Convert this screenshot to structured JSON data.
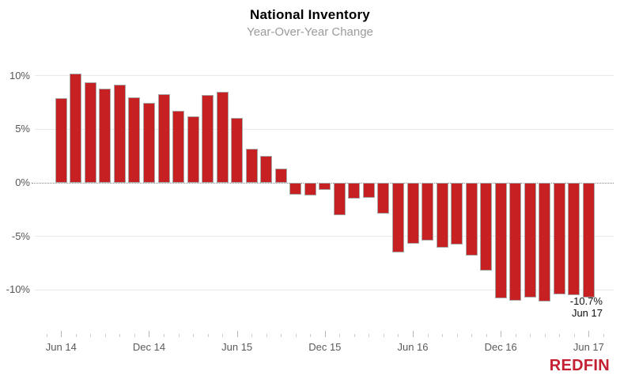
{
  "header": {
    "title": "National Inventory",
    "subtitle": "Year-Over-Year Change"
  },
  "branding": {
    "logo_text": "REDFIN",
    "logo_color": "#c32031"
  },
  "annotation": {
    "value_label": "-10.7%",
    "date_label": "Jun 17"
  },
  "chart_data": {
    "type": "bar",
    "title": "National Inventory",
    "subtitle": "Year-Over-Year Change",
    "unit": "%",
    "categories": [
      "Jun 14",
      "Jul 14",
      "Aug 14",
      "Sep 14",
      "Oct 14",
      "Nov 14",
      "Dec 14",
      "Jan 15",
      "Feb 15",
      "Mar 15",
      "Apr 15",
      "May 15",
      "Jun 15",
      "Jul 15",
      "Aug 15",
      "Sep 15",
      "Oct 15",
      "Nov 15",
      "Dec 15",
      "Jan 16",
      "Feb 16",
      "Mar 16",
      "Apr 16",
      "May 16",
      "Jun 16",
      "Jul 16",
      "Aug 16",
      "Sep 16",
      "Oct 16",
      "Nov 16",
      "Dec 16",
      "Jan 17",
      "Feb 17",
      "Mar 17",
      "Apr 17",
      "May 17",
      "Jun 17"
    ],
    "values": [
      7.9,
      10.2,
      9.4,
      8.8,
      9.2,
      8.0,
      7.5,
      8.3,
      6.7,
      6.2,
      8.2,
      8.5,
      6.1,
      3.2,
      2.5,
      1.3,
      -1.1,
      -1.2,
      -0.7,
      -3.0,
      -1.5,
      -1.4,
      -2.9,
      -6.5,
      -5.7,
      -5.4,
      -6.1,
      -5.8,
      -6.8,
      -8.2,
      -10.8,
      -11.0,
      -10.7,
      -11.1,
      -10.4,
      -10.5,
      -10.7
    ],
    "x_axis_labeled_ticks": [
      "Jun 14",
      "Dec 14",
      "Jun 15",
      "Dec 15",
      "Jun 16",
      "Dec 16",
      "Jun 17"
    ],
    "y_ticks": [
      {
        "label": "10%",
        "value": 10
      },
      {
        "label": "5%",
        "value": 5
      },
      {
        "label": "0%",
        "value": 0
      },
      {
        "label": "-5%",
        "value": -5
      },
      {
        "label": "-10%",
        "value": -10
      }
    ],
    "ylim": [
      -12.5,
      11.2
    ],
    "grid": "horizontal",
    "legend": "none",
    "bar_color": "#c62023",
    "bar_border_color": "#a8a8a8",
    "zero_line_style": "dotted",
    "last_point_annotation": "-10.7% Jun 17"
  },
  "colors": {
    "grid": "#e9e9e9",
    "zero_line": "#8a8a8a",
    "axis_text": "#5a5a5a",
    "title": "#000000",
    "subtitle": "#9b9b9b",
    "annotation": "#111111"
  }
}
